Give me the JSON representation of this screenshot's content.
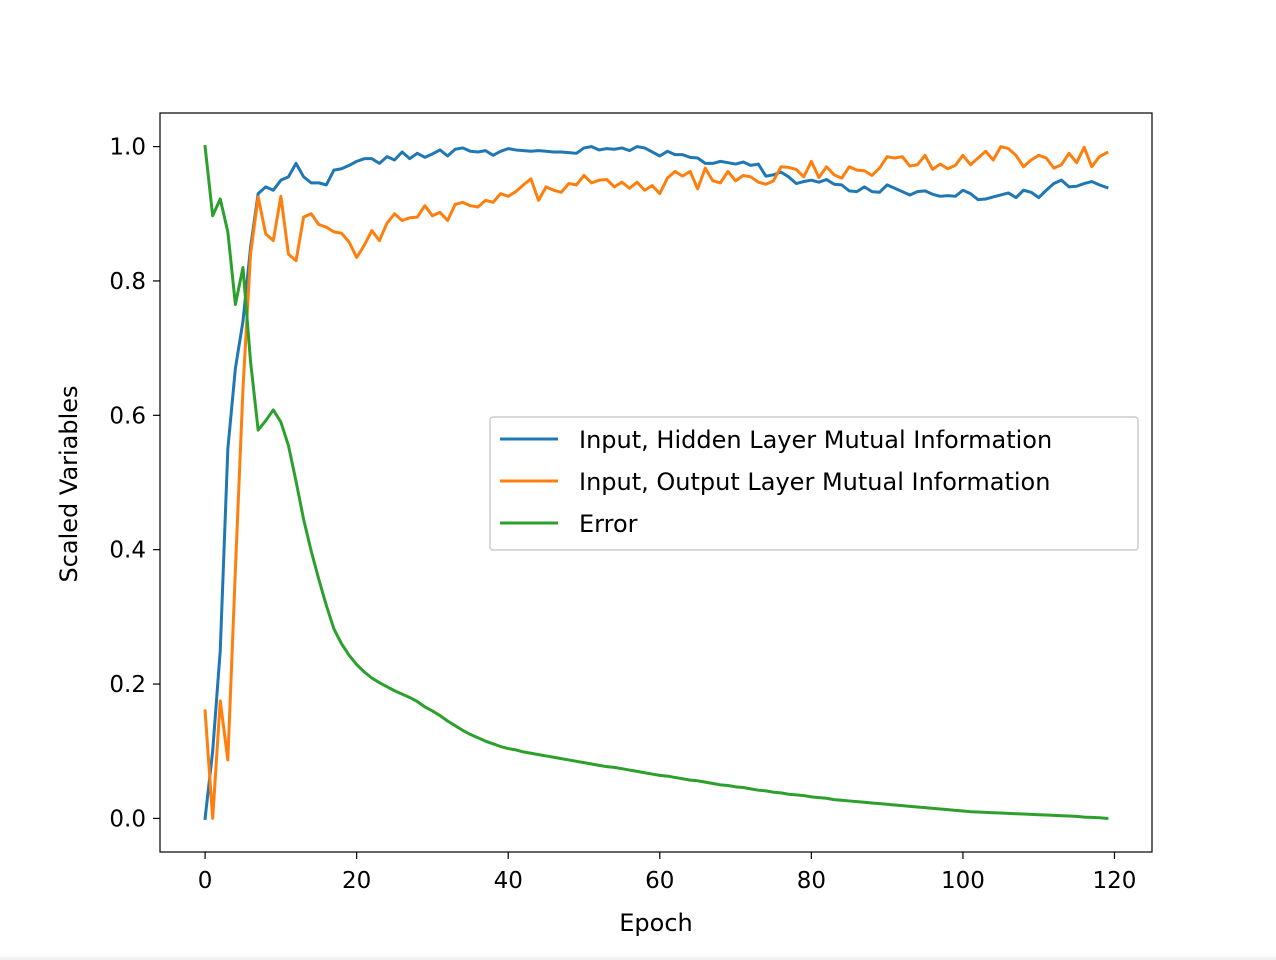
{
  "chart_data": {
    "type": "line",
    "title": "",
    "xlabel": "Epoch",
    "ylabel": "Scaled Variables",
    "xlim": [
      -5.95,
      124.95
    ],
    "ylim": [
      -0.05,
      1.05
    ],
    "xticks": [
      0,
      20,
      40,
      60,
      80,
      100,
      120
    ],
    "yticks": [
      0.0,
      0.2,
      0.4,
      0.6,
      0.8,
      1.0
    ],
    "xtick_labels": [
      "0",
      "20",
      "40",
      "60",
      "80",
      "100",
      "120"
    ],
    "ytick_labels": [
      "0.0",
      "0.2",
      "0.4",
      "0.6",
      "0.8",
      "1.0"
    ],
    "grid": false,
    "legend_position": "center-right",
    "series": [
      {
        "name": "Input, Hidden Layer Mutual Information",
        "color": "#1f77b4",
        "x_start": 0,
        "values": [
          0.0,
          0.1,
          0.25,
          0.55,
          0.67,
          0.74,
          0.85,
          0.93,
          0.94,
          0.935,
          0.95,
          0.955,
          0.975,
          0.955,
          0.946,
          0.946,
          0.943,
          0.965,
          0.967,
          0.972,
          0.978,
          0.982,
          0.982,
          0.975,
          0.985,
          0.98,
          0.992,
          0.982,
          0.99,
          0.984,
          0.989,
          0.995,
          0.986,
          0.996,
          0.998,
          0.993,
          0.992,
          0.994,
          0.987,
          0.993,
          0.997,
          0.995,
          0.994,
          0.993,
          0.994,
          0.993,
          0.992,
          0.992,
          0.991,
          0.99,
          0.998,
          1.0,
          0.995,
          0.997,
          0.996,
          0.998,
          0.994,
          1.0,
          0.998,
          0.992,
          0.986,
          0.993,
          0.988,
          0.988,
          0.984,
          0.983,
          0.975,
          0.975,
          0.978,
          0.976,
          0.974,
          0.977,
          0.972,
          0.974,
          0.956,
          0.958,
          0.962,
          0.955,
          0.945,
          0.948,
          0.95,
          0.947,
          0.951,
          0.944,
          0.943,
          0.934,
          0.933,
          0.94,
          0.933,
          0.932,
          0.943,
          0.938,
          0.933,
          0.928,
          0.933,
          0.934,
          0.929,
          0.926,
          0.927,
          0.926,
          0.935,
          0.93,
          0.921,
          0.922,
          0.925,
          0.928,
          0.931,
          0.924,
          0.935,
          0.932,
          0.924,
          0.935,
          0.945,
          0.95,
          0.94,
          0.941,
          0.945,
          0.948,
          0.943,
          0.939
        ]
      },
      {
        "name": "Input, Output Layer Mutual Information",
        "color": "#ff7f0e",
        "x_start": 0,
        "values": [
          0.16,
          0.0,
          0.175,
          0.087,
          0.37,
          0.64,
          0.84,
          0.925,
          0.87,
          0.86,
          0.926,
          0.84,
          0.83,
          0.895,
          0.9,
          0.884,
          0.88,
          0.873,
          0.871,
          0.858,
          0.835,
          0.853,
          0.875,
          0.86,
          0.886,
          0.9,
          0.89,
          0.894,
          0.895,
          0.912,
          0.897,
          0.902,
          0.89,
          0.914,
          0.917,
          0.912,
          0.91,
          0.92,
          0.917,
          0.93,
          0.926,
          0.933,
          0.943,
          0.952,
          0.92,
          0.94,
          0.935,
          0.932,
          0.945,
          0.943,
          0.957,
          0.946,
          0.95,
          0.951,
          0.94,
          0.947,
          0.938,
          0.947,
          0.935,
          0.942,
          0.93,
          0.953,
          0.963,
          0.956,
          0.963,
          0.937,
          0.968,
          0.949,
          0.946,
          0.963,
          0.949,
          0.957,
          0.955,
          0.947,
          0.944,
          0.949,
          0.97,
          0.969,
          0.966,
          0.955,
          0.978,
          0.954,
          0.97,
          0.958,
          0.953,
          0.97,
          0.965,
          0.964,
          0.957,
          0.968,
          0.985,
          0.983,
          0.985,
          0.971,
          0.973,
          0.987,
          0.966,
          0.974,
          0.967,
          0.972,
          0.987,
          0.973,
          0.983,
          0.993,
          0.98,
          1.0,
          0.997,
          0.987,
          0.97,
          0.98,
          0.987,
          0.983,
          0.968,
          0.973,
          0.99,
          0.976,
          0.999,
          0.97,
          0.985,
          0.991
        ]
      },
      {
        "name": "Error",
        "color": "#2ca02c",
        "x_start": 0,
        "values": [
          1.0,
          0.897,
          0.922,
          0.873,
          0.765,
          0.82,
          0.68,
          0.578,
          0.592,
          0.608,
          0.59,
          0.555,
          0.502,
          0.445,
          0.398,
          0.356,
          0.317,
          0.282,
          0.26,
          0.243,
          0.229,
          0.218,
          0.209,
          0.202,
          0.196,
          0.19,
          0.185,
          0.18,
          0.174,
          0.166,
          0.16,
          0.153,
          0.145,
          0.138,
          0.131,
          0.125,
          0.12,
          0.115,
          0.111,
          0.107,
          0.104,
          0.102,
          0.099,
          0.097,
          0.095,
          0.093,
          0.091,
          0.089,
          0.087,
          0.085,
          0.083,
          0.081,
          0.079,
          0.077,
          0.076,
          0.074,
          0.072,
          0.07,
          0.068,
          0.066,
          0.064,
          0.063,
          0.061,
          0.059,
          0.057,
          0.056,
          0.054,
          0.052,
          0.05,
          0.049,
          0.047,
          0.046,
          0.044,
          0.042,
          0.041,
          0.039,
          0.038,
          0.036,
          0.035,
          0.034,
          0.032,
          0.031,
          0.03,
          0.028,
          0.027,
          0.026,
          0.025,
          0.024,
          0.023,
          0.022,
          0.021,
          0.02,
          0.019,
          0.018,
          0.017,
          0.016,
          0.015,
          0.014,
          0.013,
          0.012,
          0.011,
          0.01,
          0.0095,
          0.009,
          0.0085,
          0.008,
          0.0075,
          0.007,
          0.0065,
          0.006,
          0.0055,
          0.005,
          0.0045,
          0.004,
          0.0035,
          0.003,
          0.002,
          0.0015,
          0.001,
          0.0
        ]
      }
    ]
  }
}
